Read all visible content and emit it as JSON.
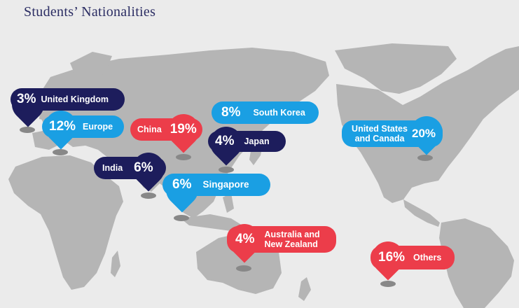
{
  "title": "Students’ Nationalities",
  "colors": {
    "navy": "#1d1d5c",
    "sky": "#1a9fe3",
    "red": "#ec3d4a",
    "land": "#b5b5b5",
    "background": "#ebebeb"
  },
  "markers": [
    {
      "id": "united-kingdom",
      "pct": "3%",
      "label": "United Kingdom",
      "color": "navy"
    },
    {
      "id": "europe",
      "pct": "12%",
      "label": "Europe",
      "color": "sky"
    },
    {
      "id": "china",
      "pct": "19%",
      "label": "China",
      "color": "red"
    },
    {
      "id": "south-korea",
      "pct": "8%",
      "label": "South Korea",
      "color": "sky"
    },
    {
      "id": "japan",
      "pct": "4%",
      "label": "Japan",
      "color": "navy"
    },
    {
      "id": "india",
      "pct": "6%",
      "label": "India",
      "color": "navy"
    },
    {
      "id": "singapore",
      "pct": "6%",
      "label": "Singapore",
      "color": "sky"
    },
    {
      "id": "united-states-and-canada",
      "pct": "20%",
      "label": "United States and Canada",
      "color": "sky"
    },
    {
      "id": "australia-and-new-zealand",
      "pct": "4%",
      "label": "Australia and New Zealand",
      "color": "red"
    },
    {
      "id": "others",
      "pct": "16%",
      "label": "Others",
      "color": "red"
    }
  ]
}
